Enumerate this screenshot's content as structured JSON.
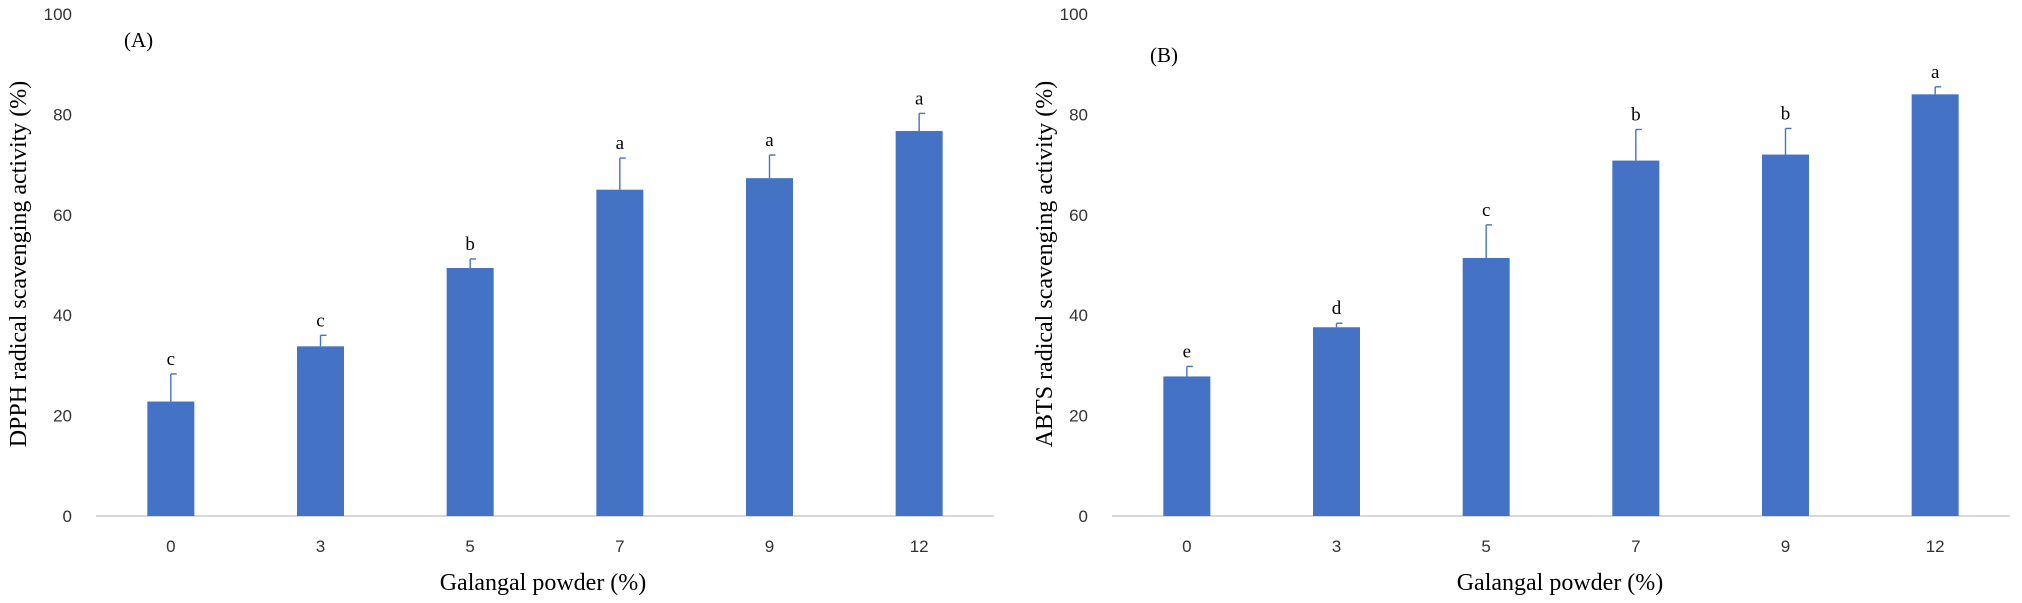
{
  "chart_data": [
    {
      "type": "bar",
      "panel_label": "(A)",
      "categories": [
        "0",
        "3",
        "5",
        "7",
        "9",
        "12"
      ],
      "values": [
        22.8,
        33.8,
        49.4,
        65.0,
        67.3,
        76.7
      ],
      "error_plus": [
        5.5,
        2.2,
        1.8,
        6.3,
        4.6,
        3.5
      ],
      "significance": [
        "c",
        "c",
        "b",
        "a",
        "a",
        "a"
      ],
      "xlabel": "Galangal powder (%)",
      "ylabel": "DPPH radical  scavenging activity (%)",
      "ylim": [
        0,
        100
      ],
      "yticks": [
        0,
        20,
        40,
        60,
        80,
        100
      ],
      "grid": false,
      "color": "#4472c4"
    },
    {
      "type": "bar",
      "panel_label": "(B)",
      "categories": [
        "0",
        "3",
        "5",
        "7",
        "9",
        "12"
      ],
      "values": [
        27.8,
        37.6,
        51.4,
        70.8,
        72.0,
        84.0
      ],
      "error_plus": [
        2.0,
        0.8,
        6.6,
        6.2,
        5.2,
        1.5
      ],
      "significance": [
        "e",
        "d",
        "c",
        "b",
        "b",
        "a"
      ],
      "xlabel": "Galangal powder (%)",
      "ylabel": "ABTS  radical scavenging activity (%)",
      "ylim": [
        0,
        100
      ],
      "yticks": [
        0,
        20,
        40,
        60,
        80,
        100
      ],
      "grid": false,
      "color": "#4472c4"
    }
  ]
}
